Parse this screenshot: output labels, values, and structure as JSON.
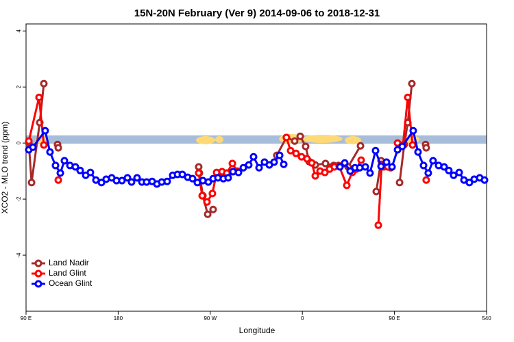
{
  "chart_data": {
    "type": "line",
    "title": "15N-20N February (Ver 9)   2014-09-06 to 2018-12-31",
    "x_label": "Longitude",
    "y_label": "XCO2 - MLO trend (ppm)",
    "xlim": [
      90,
      540
    ],
    "xticks": [
      {
        "value": 90,
        "label": "90 E"
      },
      180,
      {
        "value": 270,
        "label": "90 W"
      },
      {
        "value": 360,
        "label": "0"
      },
      {
        "value": 450,
        "label": "90 E"
      },
      540
    ],
    "ylim": [
      -6,
      4.25
    ],
    "yticks": [
      -4,
      -2,
      0,
      2,
      4
    ],
    "legend": "bottom-left",
    "series": [
      {
        "name": "Land Nadir",
        "color": "#a52a2a",
        "x": [
          92.7,
          95.4,
          103.4,
          107.4,
          null,
          120.8,
          121.5,
          null,
          258.7,
          259.4,
          262.8,
          267.5,
          272.8,
          null,
          335,
          344.4,
          352.5,
          357.9,
          363.2,
          366.6,
          372.6,
          382.6,
          390.6,
          395.3,
          404.7,
          416.8,
          null,
          432.2,
          436.9,
          439.6,
          446.3,
          null,
          455,
          459.6,
          463,
          467,
          null,
          480.4,
          481
        ],
        "values": [
          0,
          -1.41,
          0.73,
          2.12,
          null,
          -0.05,
          -0.17,
          null,
          -0.85,
          -1.07,
          -1.88,
          -2.54,
          -2.37,
          null,
          -0.44,
          0.2,
          0.07,
          0.24,
          -0.12,
          -0.66,
          -0.78,
          -0.73,
          -0.8,
          -0.8,
          -0.85,
          -0.1,
          null,
          -1.73,
          -0.63,
          -0.85,
          -0.88,
          null,
          -1.41,
          -0.05,
          0.73,
          2.12,
          null,
          -0.05,
          -0.17
        ]
      },
      {
        "name": "Land Glint",
        "color": "#ff0000",
        "x": [
          92.7,
          102.7,
          107.4,
          null,
          121.5,
          null,
          258.7,
          262.1,
          266.8,
          272.1,
          276.2,
          281.5,
          286.2,
          291.6,
          296.2,
          null,
          344.4,
          348.5,
          353.8,
          359.2,
          364.5,
          369.2,
          372.6,
          377.3,
          382,
          386.6,
          391.3,
          396,
          403.4,
          408.7,
          412.7,
          417.4,
          null,
          434.2,
          437.5,
          443.5,
          null,
          453,
          458.3,
          463,
          467.7,
          null,
          481
        ],
        "values": [
          0.07,
          1.63,
          -0.07,
          null,
          -1.32,
          null,
          -1.07,
          -1.88,
          -2.1,
          -1.8,
          -1.05,
          -1.02,
          -1.07,
          -0.73,
          -1.0,
          null,
          0.2,
          -0.27,
          -0.37,
          -0.49,
          -0.56,
          -0.71,
          -1.17,
          -1.0,
          -1.05,
          -0.93,
          -0.85,
          -0.83,
          -1.51,
          -1.05,
          -0.93,
          -0.61,
          null,
          -2.93,
          -0.76,
          -0.85,
          null,
          0.0,
          -0.07,
          1.63,
          -0.07,
          null,
          -1.32
        ]
      },
      {
        "name": "Ocean Glint",
        "color": "#0000ff",
        "x": [
          92.7,
          96.7,
          108.7,
          113.4,
          118.8,
          123.5,
          127.5,
          132.9,
          138.2,
          142.9,
          148.3,
          152.9,
          158.3,
          163.7,
          168.3,
          173.7,
          178.4,
          183.7,
          189.1,
          193.1,
          198.5,
          203.2,
          207.8,
          213.2,
          217.9,
          222.6,
          227.9,
          233.3,
          238,
          242.7,
          248,
          252.7,
          257.4,
          262.8,
          268.1,
          272.8,
          277.5,
          282.8,
          287.5,
          292.2,
          297.6,
          302.3,
          307.6,
          312.3,
          317.7,
          323,
          327.7,
          332.4,
          337.8,
          341.8,
          null,
          396.7,
          401.4,
          406.7,
          411.4,
          416.1,
          421.5,
          426.1,
          431.5,
          436.9,
          442.2,
          447.6,
          453,
          457.6,
          468.3,
          473,
          478.4,
          483,
          487.7,
          493.1,
          498.5,
          503.1,
          507.8,
          513.2,
          517.9,
          523.2,
          527.9,
          533.3,
          538
        ],
        "values": [
          -0.24,
          -0.15,
          0.44,
          -0.32,
          -0.8,
          -1.07,
          -0.63,
          -0.8,
          -0.85,
          -0.98,
          -1.15,
          -1.05,
          -1.32,
          -1.41,
          -1.29,
          -1.24,
          -1.34,
          -1.34,
          -1.24,
          -1.39,
          -1.24,
          -1.39,
          -1.39,
          -1.37,
          -1.46,
          -1.39,
          -1.37,
          -1.15,
          -1.12,
          -1.12,
          -1.22,
          -1.27,
          -1.41,
          -1.34,
          -1.39,
          -1.27,
          -1.24,
          -1.27,
          -1.24,
          -1.02,
          -1.05,
          -0.88,
          -0.78,
          -0.49,
          -0.88,
          -0.68,
          -0.78,
          -0.68,
          -0.44,
          -0.76,
          null,
          -0.85,
          -0.71,
          -1.0,
          -0.88,
          -0.88,
          -0.85,
          -1.07,
          -0.27,
          -0.83,
          -0.68,
          -0.85,
          -0.24,
          -0.12,
          0.44,
          -0.32,
          -0.8,
          -1.07,
          -0.63,
          -0.8,
          -0.85,
          -0.98,
          -1.15,
          -1.05,
          -1.32,
          -1.41,
          -1.29,
          -1.24,
          -1.32
        ]
      }
    ]
  }
}
